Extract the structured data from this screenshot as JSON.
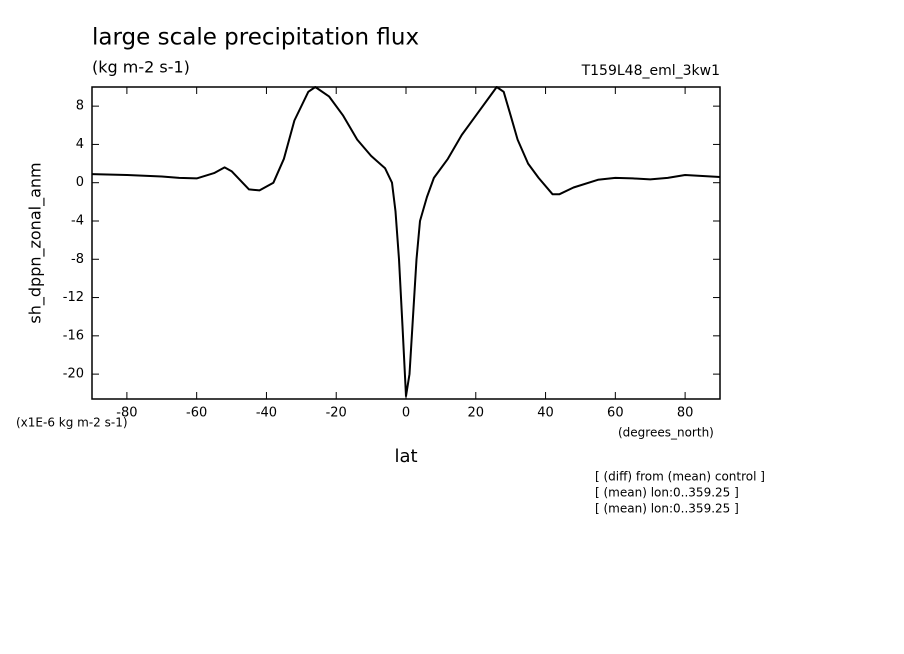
{
  "chart_data": {
    "type": "line",
    "title": "large scale precipitation flux",
    "subtitle": "(kg m-2 s-1)",
    "run_label": "T159L48_eml_3kw1",
    "ylabel": "sh_dppn_zonal_anm",
    "y_unit_label": "(x1E-6 kg m-2 s-1)",
    "xlabel": "lat",
    "x_unit_label": "(degrees_north)",
    "notes": [
      "[ (diff) from (mean) control ]",
      "[ (mean) lon:0..359.25 ]",
      "[ (mean) lon:0..359.25 ]"
    ],
    "x": [
      -90,
      -80,
      -70,
      -65,
      -60,
      -55,
      -52,
      -50,
      -45,
      -42,
      -38,
      -35,
      -32,
      -28,
      -26,
      -22,
      -18,
      -14,
      -10,
      -6,
      -4,
      -3,
      -2,
      -1,
      0,
      1,
      2,
      3,
      4,
      6,
      8,
      12,
      16,
      20,
      24,
      26,
      28,
      30,
      32,
      35,
      38,
      42,
      44,
      48,
      55,
      60,
      65,
      70,
      75,
      80,
      85,
      90
    ],
    "series": [
      {
        "color": "#000000",
        "values": [
          0.9,
          0.8,
          0.65,
          0.5,
          0.45,
          1.0,
          1.6,
          1.2,
          -0.7,
          -0.8,
          0,
          2.5,
          6.5,
          9.5,
          10,
          9,
          7,
          4.5,
          2.8,
          1.5,
          0,
          -3,
          -8,
          -15,
          -22.3,
          -20,
          -14,
          -8,
          -4,
          -1.5,
          0.5,
          2.5,
          5,
          7,
          9,
          10,
          9.5,
          7,
          4.5,
          2,
          0.5,
          -1.2,
          -1.2,
          -0.5,
          0.3,
          0.5,
          0.45,
          0.35,
          0.5,
          0.8,
          0.7,
          0.6
        ]
      }
    ],
    "xlim": [
      -90,
      90
    ],
    "xticks": [
      -80,
      -60,
      -40,
      -20,
      0,
      20,
      40,
      60,
      80
    ],
    "ylim": [
      -22.6,
      10
    ],
    "yticks": [
      -20,
      -16,
      -12,
      -8,
      -4,
      0,
      4,
      8
    ]
  }
}
